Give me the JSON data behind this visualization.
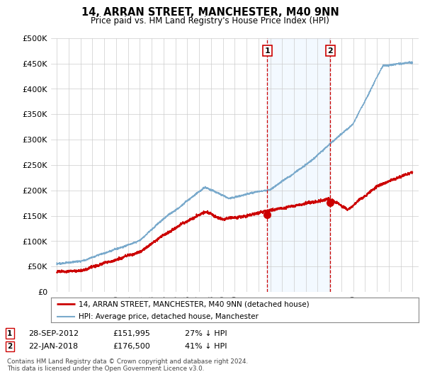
{
  "title": "14, ARRAN STREET, MANCHESTER, M40 9NN",
  "subtitle": "Price paid vs. HM Land Registry's House Price Index (HPI)",
  "legend_line1": "14, ARRAN STREET, MANCHESTER, M40 9NN (detached house)",
  "legend_line2": "HPI: Average price, detached house, Manchester",
  "annotation1_label": "1",
  "annotation1_date": "28-SEP-2012",
  "annotation1_price": "£151,995",
  "annotation1_hpi": "27% ↓ HPI",
  "annotation2_label": "2",
  "annotation2_date": "22-JAN-2018",
  "annotation2_price": "£176,500",
  "annotation2_hpi": "41% ↓ HPI",
  "footer": "Contains HM Land Registry data © Crown copyright and database right 2024.\nThis data is licensed under the Open Government Licence v3.0.",
  "vline1_x": 2012.75,
  "vline2_x": 2018.06,
  "purchase1_x": 2012.75,
  "purchase1_y": 151995,
  "purchase2_x": 2018.06,
  "purchase2_y": 176500,
  "ylim": [
    0,
    500000
  ],
  "xlim": [
    1994.5,
    2025.5
  ],
  "red_color": "#cc0000",
  "blue_color": "#7aaacc",
  "shade_color": "#ddeeff",
  "background_color": "#ffffff",
  "grid_color": "#cccccc"
}
